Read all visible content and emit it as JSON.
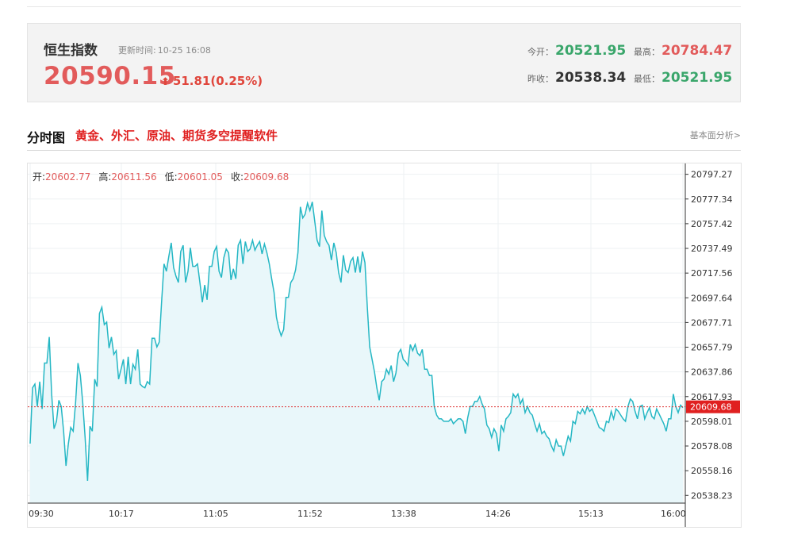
{
  "header": {
    "name": "恒生指数",
    "update_label": "更新时间:",
    "update_time": "10-25 16:08",
    "price": "20590.15",
    "change": "51.81(0.25%)"
  },
  "stats": {
    "open_label": "今开：",
    "open": "20521.95",
    "high_label": "最高：",
    "high": "20784.47",
    "prev_close_label": "昨收：",
    "prev_close": "20538.34",
    "low_label": "最低：",
    "low": "20521.95"
  },
  "section": {
    "title": "分时图",
    "promo": "黄金、外汇、原油、期货多空提醒软件",
    "more": "基本面分析>"
  },
  "ohlc": {
    "open_label": "开:",
    "open": "20602.77",
    "high_label": "高:",
    "high": "20611.56",
    "low_label": "低:",
    "low": "20601.05",
    "close_label": "收:",
    "close": "20609.68"
  },
  "colors": {
    "line": "#25b7c4",
    "area": "#e9f7fa",
    "ref_line": "#d33",
    "tag": "#e02020",
    "up": "#e25b5b",
    "down": "#3aa66b"
  },
  "chart_data": {
    "type": "area",
    "x_ticks": [
      "09:30",
      "10:17",
      "11:05",
      "11:52",
      "13:38",
      "14:26",
      "15:13",
      "16:00"
    ],
    "y_ticks": [
      20797.27,
      20777.34,
      20757.42,
      20737.49,
      20717.56,
      20697.64,
      20677.71,
      20657.79,
      20637.86,
      20617.93,
      20598.01,
      20578.08,
      20558.16,
      20538.23
    ],
    "current_value": 20609.68,
    "ylim": [
      20532,
      20806
    ],
    "grid": true,
    "values": [
      20580,
      20625,
      20628,
      20610,
      20630,
      20608,
      20645,
      20645,
      20666,
      20620,
      20592,
      20598,
      20615,
      20610,
      20590,
      20562,
      20580,
      20593,
      20590,
      20613,
      20645,
      20635,
      20613,
      20585,
      20550,
      20594,
      20590,
      20632,
      20626,
      20685,
      20690,
      20676,
      20678,
      20657,
      20666,
      20652,
      20655,
      20632,
      20640,
      20648,
      20628,
      20650,
      20628,
      20644,
      20640,
      20656,
      20628,
      20626,
      20625,
      20630,
      20628,
      20665,
      20665,
      20658,
      20662,
      20695,
      20725,
      20719,
      20731,
      20742,
      20722,
      20715,
      20710,
      20735,
      20740,
      20710,
      20719,
      20738,
      20723,
      20723,
      20725,
      20710,
      20694,
      20708,
      20696,
      20723,
      20723,
      20735,
      20739,
      20719,
      20714,
      20730,
      20737,
      20734,
      20712,
      20721,
      20713,
      20740,
      20744,
      20725,
      20743,
      20735,
      20737,
      20744,
      20736,
      20740,
      20743,
      20733,
      20741,
      20734,
      20725,
      20713,
      20702,
      20682,
      20673,
      20667,
      20672,
      20698,
      20698,
      20710,
      20713,
      20720,
      20734,
      20771,
      20762,
      20765,
      20774,
      20768,
      20775,
      20760,
      20744,
      20739,
      20768,
      20748,
      20743,
      20740,
      20728,
      20742,
      20734,
      20718,
      20710,
      20732,
      20720,
      20718,
      20727,
      20730,
      20718,
      20731,
      20718,
      20735,
      20726,
      20690,
      20658,
      20648,
      20638,
      20625,
      20615,
      20630,
      20632,
      20640,
      20636,
      20643,
      20630,
      20637,
      20653,
      20656,
      20648,
      20646,
      20643,
      20660,
      20655,
      20660,
      20653,
      20651,
      20656,
      20640,
      20640,
      20635,
      20635,
      20610,
      20603,
      20600,
      20600,
      20598,
      20598,
      20598,
      20600,
      20596,
      20598,
      20600,
      20600,
      20598,
      20588,
      20601,
      20610,
      20610,
      20614,
      20614,
      20618,
      20612,
      20608,
      20595,
      20592,
      20585,
      20592,
      20588,
      20574,
      20595,
      20590,
      20600,
      20602,
      20605,
      20620,
      20617,
      20620,
      20612,
      20616,
      20605,
      20610,
      20605,
      20603,
      20596,
      20590,
      20596,
      20588,
      20590,
      20586,
      20584,
      20578,
      20574,
      20583,
      20578,
      20578,
      20570,
      20578,
      20586,
      20582,
      20598,
      20596,
      20606,
      20604,
      20608,
      20604,
      20610,
      20606,
      20608,
      20603,
      20598,
      20593,
      20592,
      20590,
      20598,
      20597,
      20606,
      20600,
      20608,
      20606,
      20603,
      20600,
      20598,
      20610,
      20616,
      20614,
      20606,
      20600,
      20610,
      20611,
      20600,
      20605,
      20609,
      20602,
      20600,
      20608,
      20604,
      20600,
      20596,
      20590,
      20600,
      20600,
      20620,
      20610,
      20605,
      20611,
      20609
    ]
  }
}
